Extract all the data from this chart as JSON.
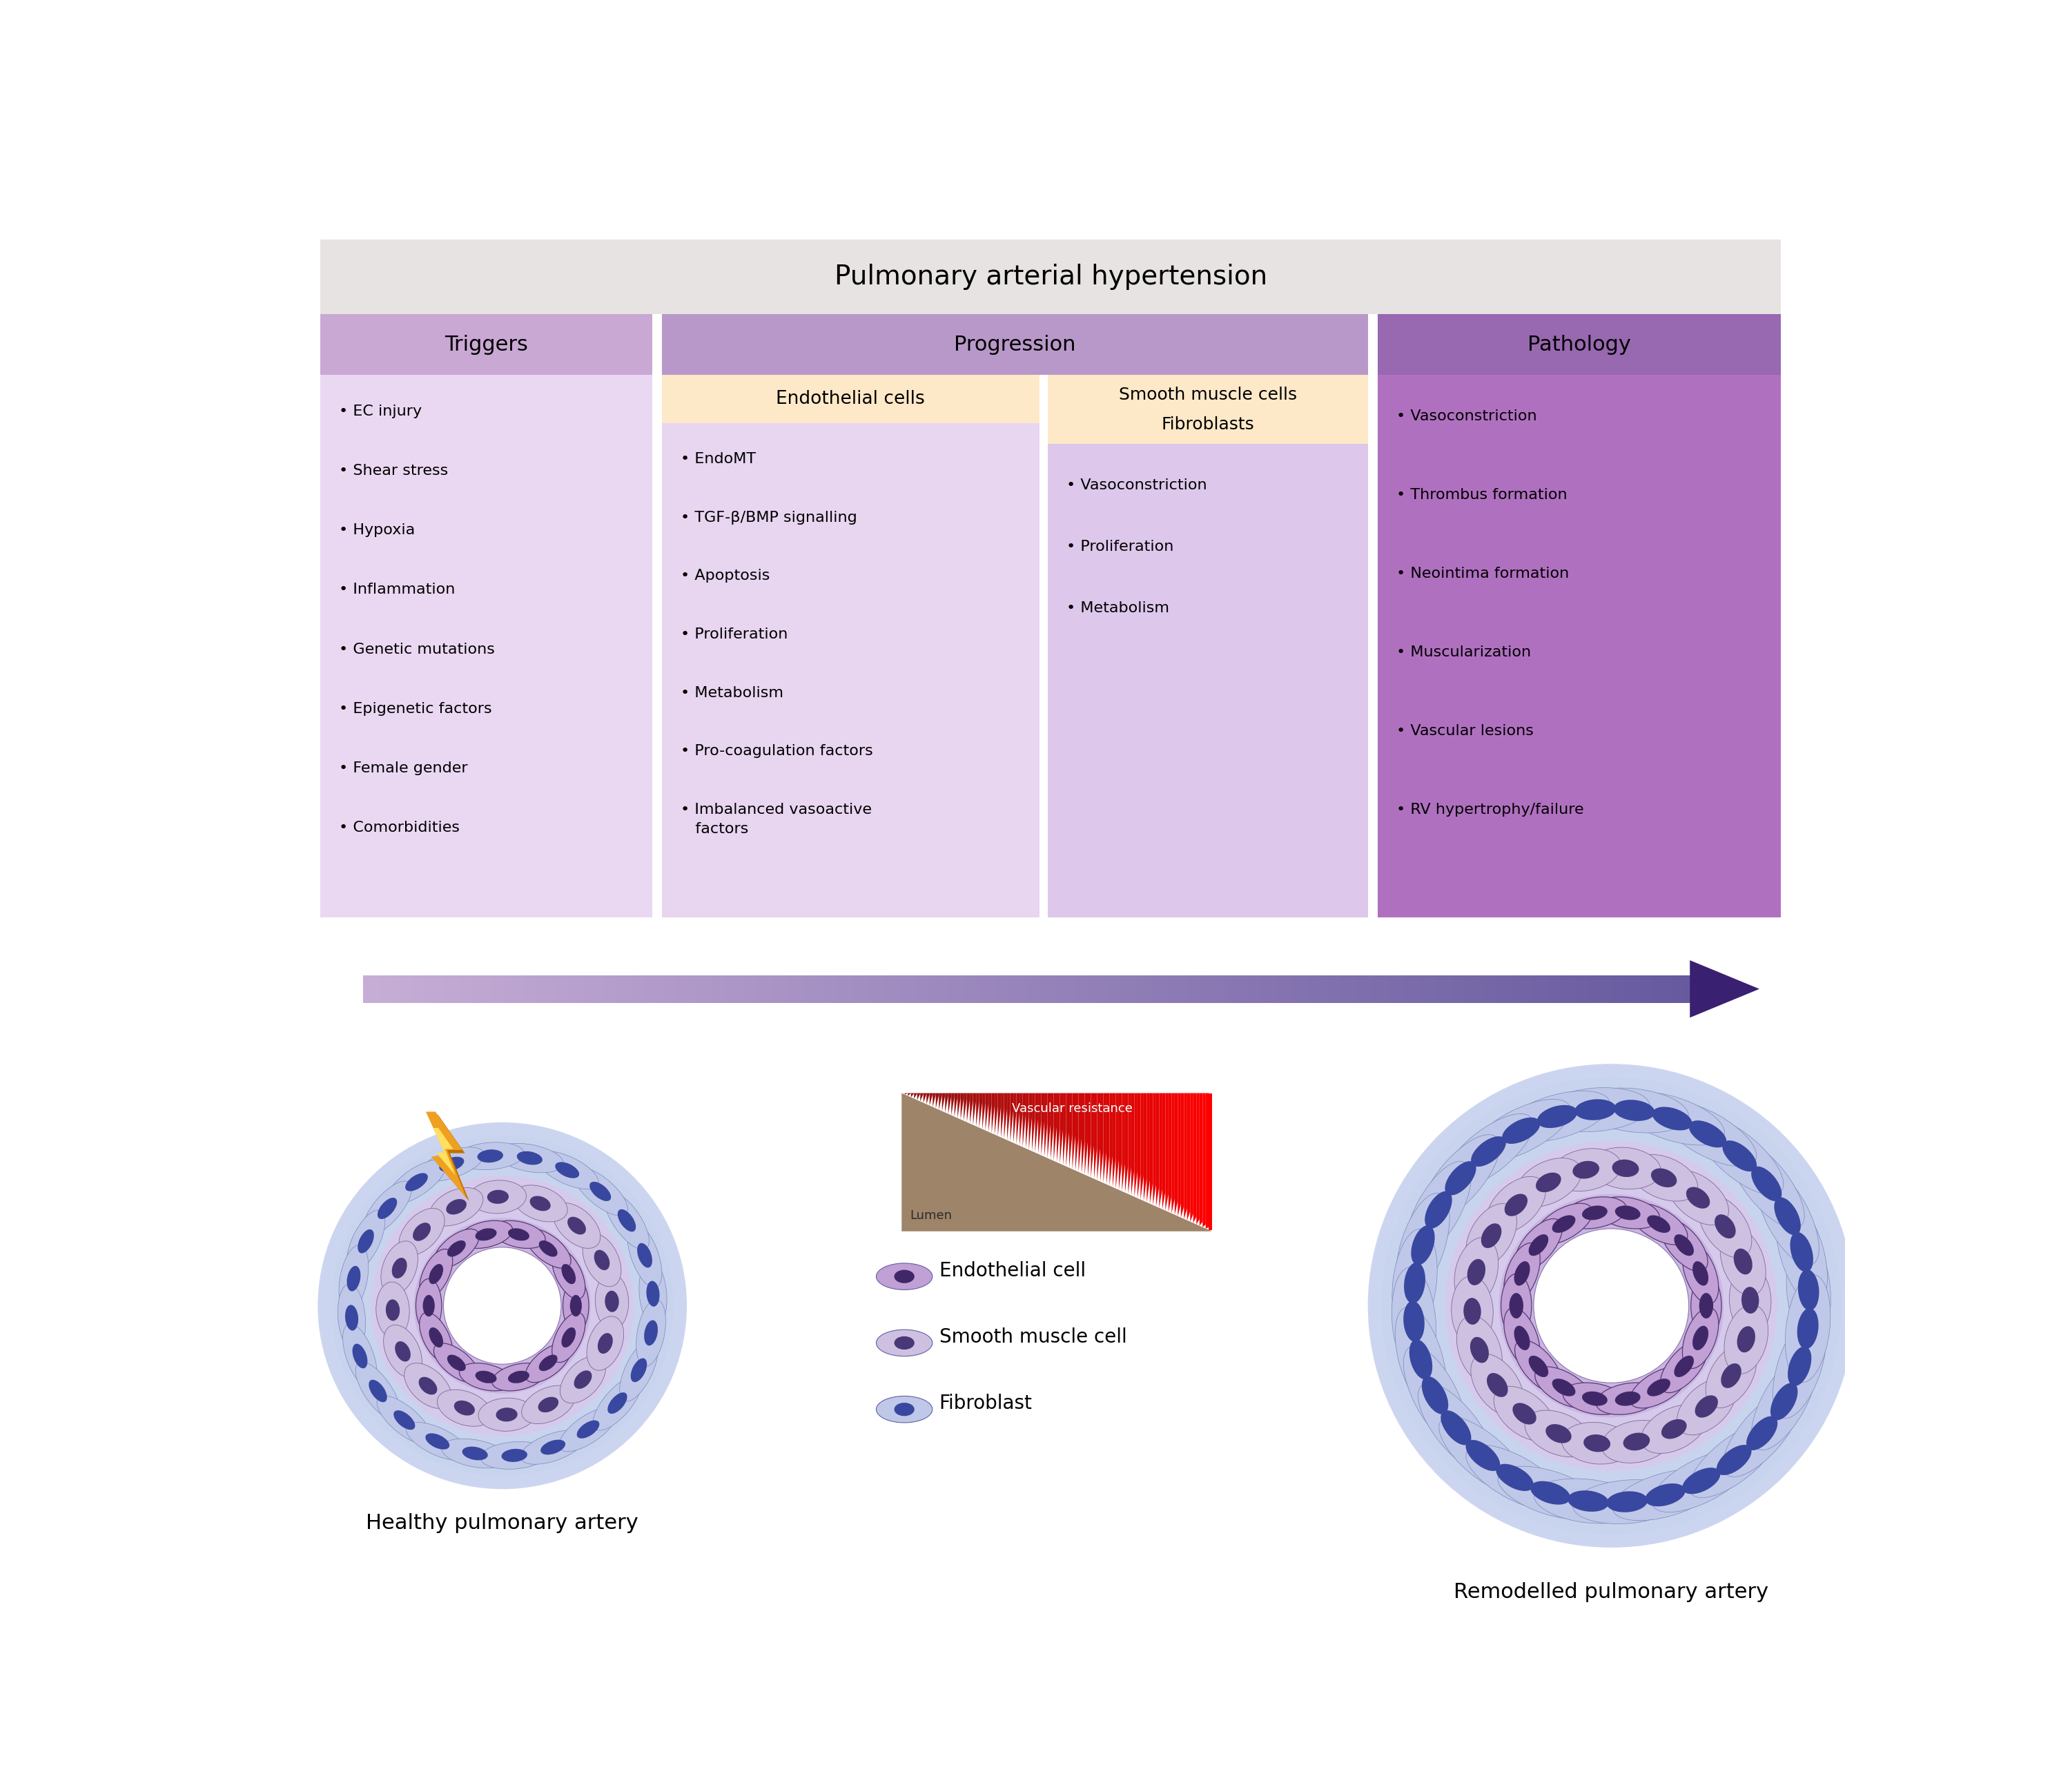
{
  "title": "Pulmonary arterial hypertension",
  "title_bg": "#e8e3e3",
  "col_headers": [
    "Triggers",
    "Progression",
    "Pathology"
  ],
  "header_colors": [
    "#c9a8d4",
    "#b898c8",
    "#9868b0"
  ],
  "triggers_items": [
    "• EC injury",
    "• Shear stress",
    "• Hypoxia",
    "• Inflammation",
    "• Genetic mutations",
    "• Epigenetic factors",
    "• Female gender",
    "• Comorbidities"
  ],
  "triggers_bg": "#ead8f2",
  "ec_header": "Endothelial cells",
  "ec_header_bg": "#fde8c8",
  "ec_items": [
    "• EndoMT",
    "• TGF-β/BMP signalling",
    "• Apoptosis",
    "• Proliferation",
    "• Metabolism",
    "• Pro-coagulation factors",
    "• Imbalanced vasoactive\n   factors"
  ],
  "ec_content_bg": "#e8d5f0",
  "smc_header1": "Smooth muscle cells",
  "smc_header2": "Fibroblasts",
  "smc_header_bg": "#fde8c8",
  "smc_items": [
    "• Vasoconstriction",
    "• Proliferation",
    "• Metabolism"
  ],
  "smc_content_bg": "#ddc8ec",
  "pathology_items": [
    "• Vasoconstriction",
    "• Thrombus formation",
    "• Neointima formation",
    "• Muscularization",
    "• Vascular lesions",
    "• RV hypertrophy/failure"
  ],
  "pathology_content_bg": "#b070c0",
  "healthy_label": "Healthy pulmonary artery",
  "remodelled_label": "Remodelled pulmonary artery",
  "legend_items": [
    "Endothelial cell",
    "Smooth muscle cell",
    "Fibroblast"
  ],
  "vascular_resistance_label": "Vascular resistance",
  "lumen_label": "Lumen",
  "background_color": "#ffffff",
  "healthy_artery": {
    "fb_outer": 3.2,
    "fb_inner": 2.45,
    "smc_outer": 2.45,
    "smc_inner": 1.65,
    "ec_outer": 1.65,
    "ec_inner": 1.1,
    "lumen_r": 1.1,
    "n_fb": 24,
    "n_smc": 16,
    "n_ec": 14
  },
  "remodelled_artery": {
    "fb_outer": 4.3,
    "fb_inner": 3.1,
    "smc_outer": 3.1,
    "smc_inner": 2.1,
    "ec_outer": 2.1,
    "ec_inner": 1.45,
    "lumen_r": 1.45,
    "n_fb": 32,
    "n_smc": 22,
    "n_ec": 18
  }
}
